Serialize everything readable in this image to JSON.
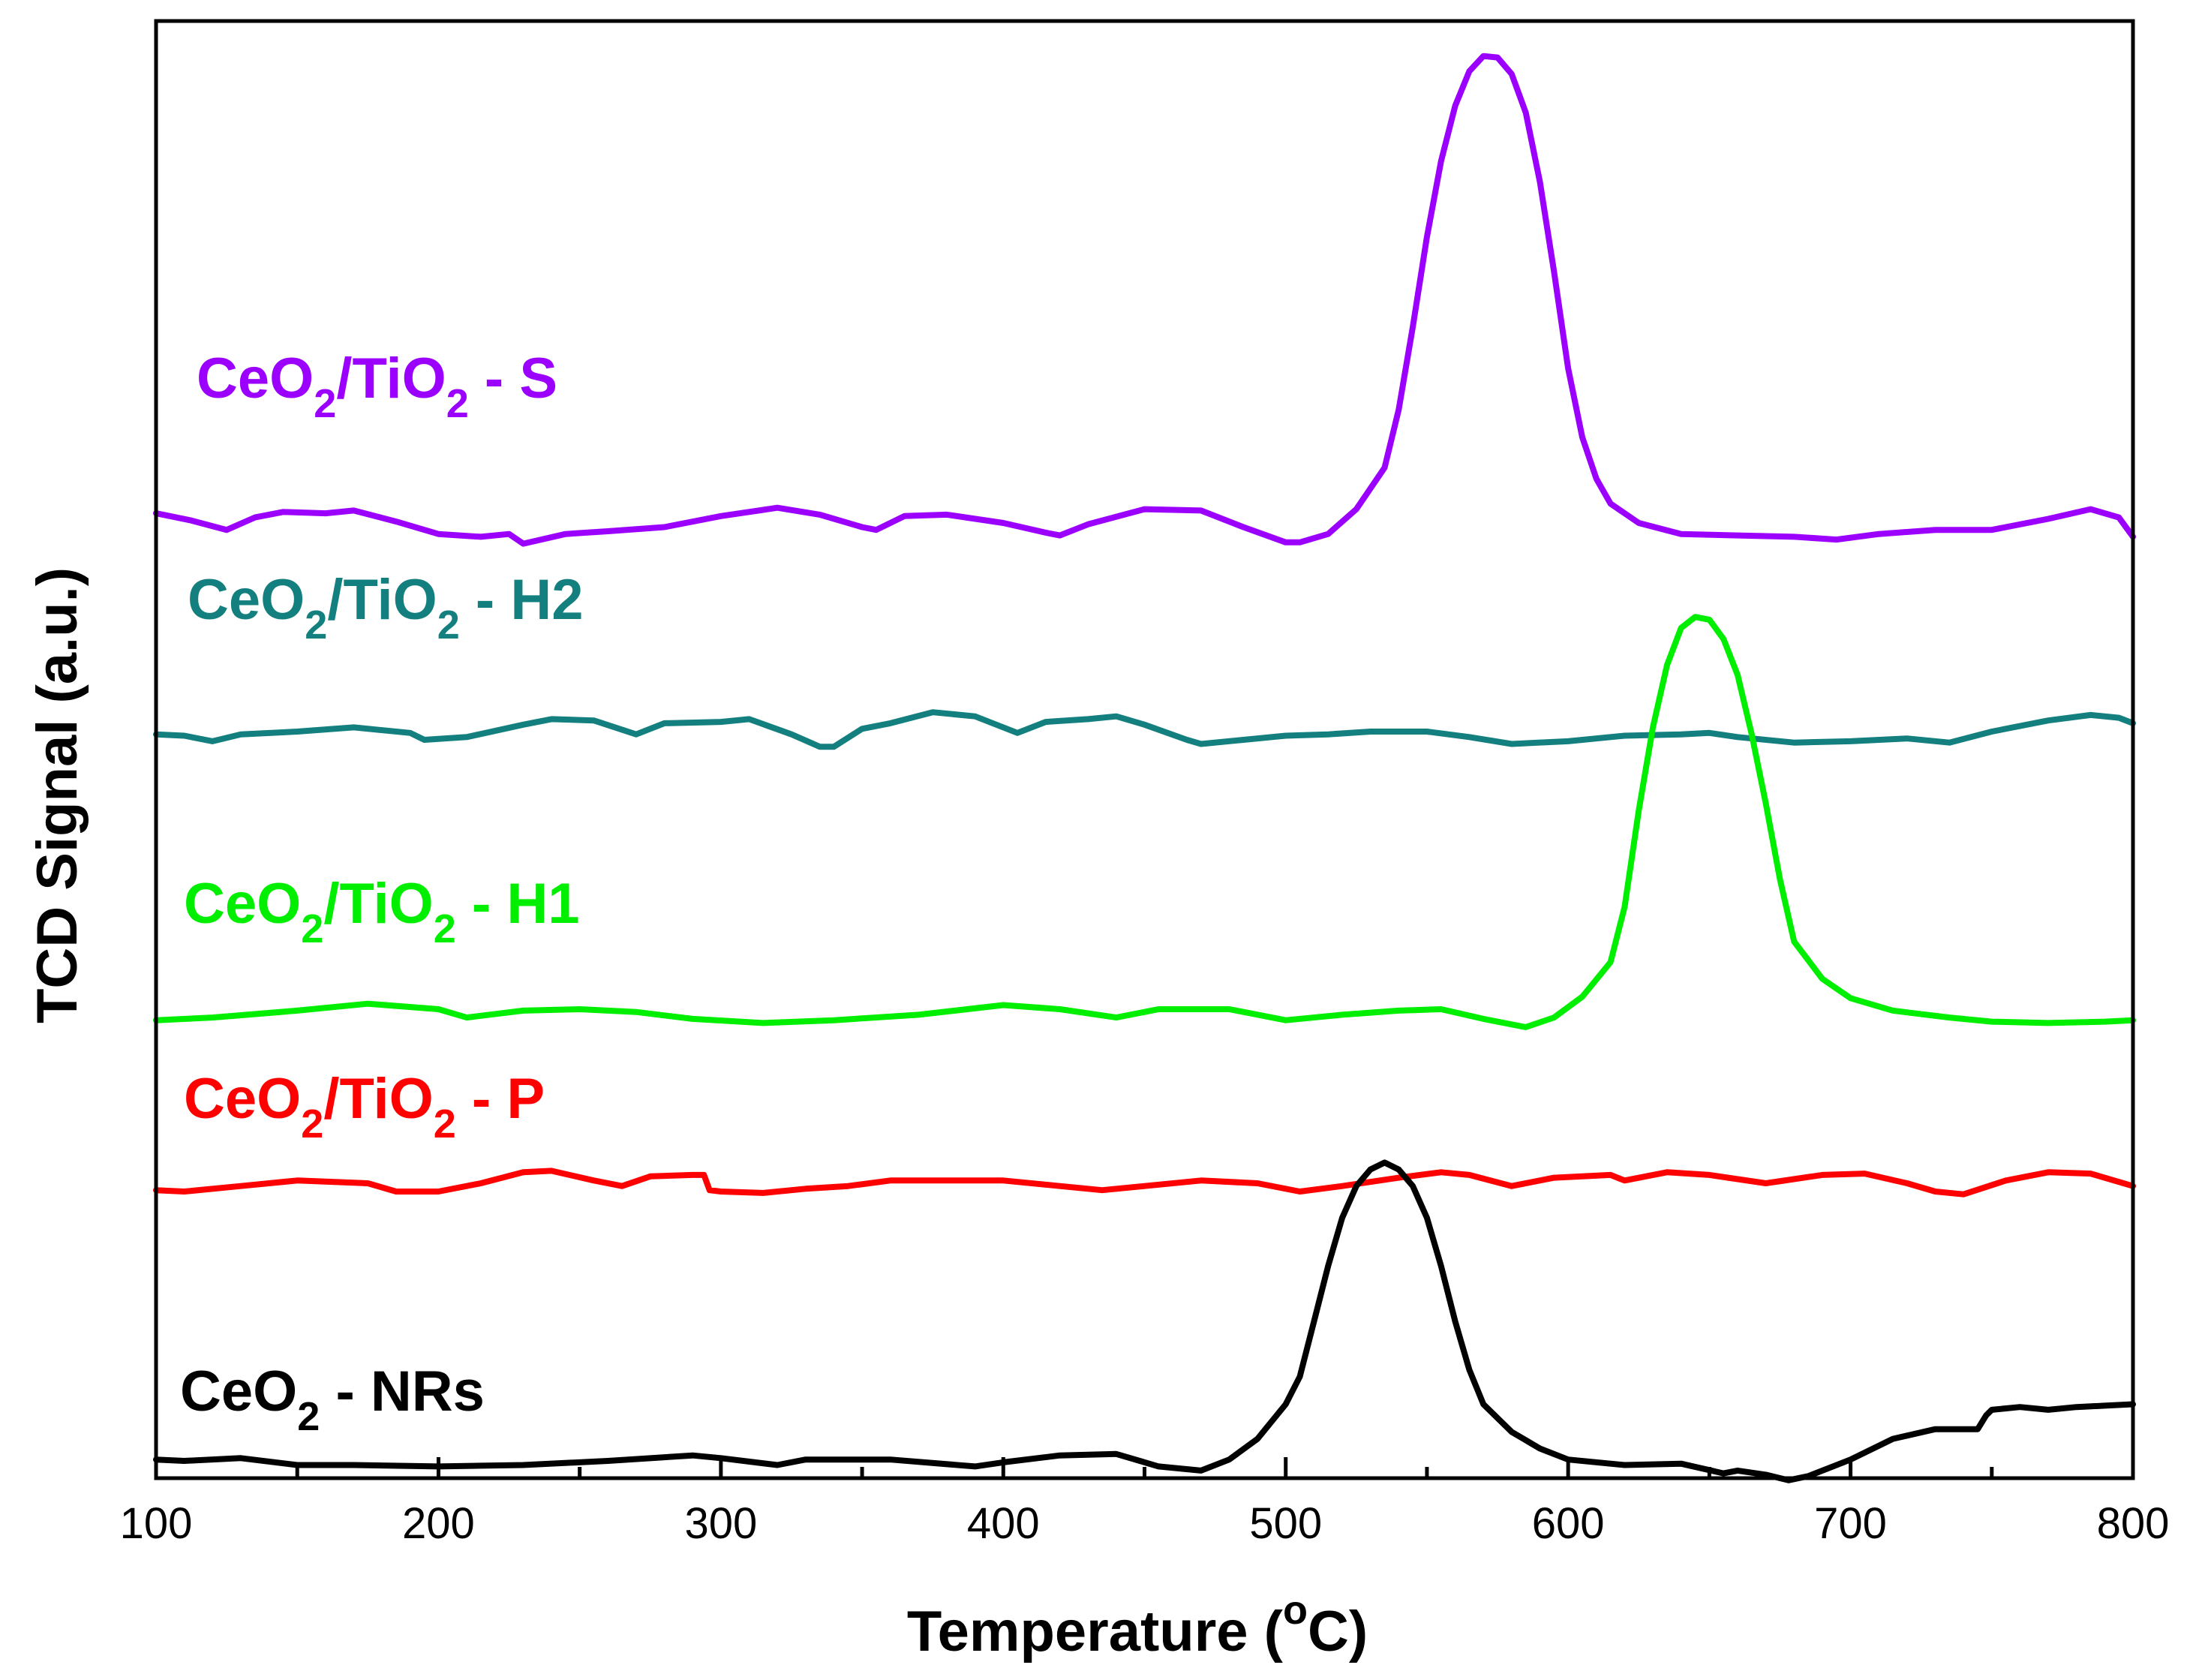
{
  "chart_data": {
    "type": "line",
    "title": "",
    "xlabel_main": "Temperature (",
    "xlabel_unit_sup": "o",
    "xlabel_unit": "C)",
    "ylabel": "TCD Signal (a.u.)",
    "xlim": [
      100,
      800
    ],
    "ylim": [
      0,
      1
    ],
    "x_ticks": [
      100,
      200,
      300,
      400,
      500,
      600,
      700,
      800
    ],
    "x_tick_labels": [
      "100",
      "200",
      "300",
      "400",
      "500",
      "600",
      "700",
      "800"
    ],
    "y_ticks_shown": false,
    "legend": "inline-labels",
    "series": [
      {
        "name": "CeO2/TiO2 - S",
        "label_parts": [
          "CeO",
          "2",
          "/TiO",
          "2",
          " - S"
        ],
        "color": "#9b00ff",
        "points": [
          [
            100,
            0.705
          ],
          [
            112,
            0.7
          ],
          [
            125,
            0.693
          ],
          [
            135,
            0.702
          ],
          [
            145,
            0.706
          ],
          [
            160,
            0.705
          ],
          [
            170,
            0.707
          ],
          [
            185,
            0.699
          ],
          [
            200,
            0.69
          ],
          [
            215,
            0.688
          ],
          [
            225,
            0.69
          ],
          [
            230,
            0.683
          ],
          [
            245,
            0.69
          ],
          [
            260,
            0.692
          ],
          [
            280,
            0.695
          ],
          [
            300,
            0.703
          ],
          [
            320,
            0.709
          ],
          [
            335,
            0.704
          ],
          [
            350,
            0.695
          ],
          [
            355,
            0.693
          ],
          [
            365,
            0.703
          ],
          [
            380,
            0.704
          ],
          [
            400,
            0.698
          ],
          [
            415,
            0.691
          ],
          [
            420,
            0.689
          ],
          [
            430,
            0.697
          ],
          [
            450,
            0.708
          ],
          [
            470,
            0.707
          ],
          [
            485,
            0.695
          ],
          [
            500,
            0.684
          ],
          [
            505,
            0.684
          ],
          [
            515,
            0.69
          ],
          [
            525,
            0.708
          ],
          [
            535,
            0.738
          ],
          [
            540,
            0.78
          ],
          [
            545,
            0.84
          ],
          [
            550,
            0.905
          ],
          [
            555,
            0.96
          ],
          [
            560,
            1.0
          ],
          [
            565,
            1.025
          ],
          [
            570,
            1.036
          ],
          [
            575,
            1.035
          ],
          [
            580,
            1.023
          ],
          [
            585,
            0.995
          ],
          [
            590,
            0.945
          ],
          [
            595,
            0.88
          ],
          [
            600,
            0.81
          ],
          [
            605,
            0.76
          ],
          [
            610,
            0.73
          ],
          [
            615,
            0.712
          ],
          [
            625,
            0.698
          ],
          [
            640,
            0.69
          ],
          [
            660,
            0.689
          ],
          [
            680,
            0.688
          ],
          [
            695,
            0.686
          ],
          [
            710,
            0.69
          ],
          [
            730,
            0.693
          ],
          [
            750,
            0.693
          ],
          [
            770,
            0.701
          ],
          [
            785,
            0.708
          ],
          [
            795,
            0.702
          ],
          [
            800,
            0.688
          ]
        ]
      },
      {
        "name": "CeO2/TiO2 - H2",
        "label_parts": [
          "CeO",
          "2",
          "/TiO",
          "2",
          " - H2"
        ],
        "color": "#147f7f",
        "points": [
          [
            100,
            0.545
          ],
          [
            110,
            0.544
          ],
          [
            120,
            0.54
          ],
          [
            130,
            0.545
          ],
          [
            150,
            0.547
          ],
          [
            170,
            0.55
          ],
          [
            190,
            0.546
          ],
          [
            195,
            0.541
          ],
          [
            210,
            0.543
          ],
          [
            230,
            0.552
          ],
          [
            240,
            0.556
          ],
          [
            255,
            0.555
          ],
          [
            270,
            0.545
          ],
          [
            280,
            0.553
          ],
          [
            300,
            0.554
          ],
          [
            310,
            0.556
          ],
          [
            325,
            0.545
          ],
          [
            335,
            0.536
          ],
          [
            340,
            0.536
          ],
          [
            350,
            0.549
          ],
          [
            360,
            0.553
          ],
          [
            375,
            0.561
          ],
          [
            390,
            0.558
          ],
          [
            405,
            0.546
          ],
          [
            415,
            0.554
          ],
          [
            430,
            0.556
          ],
          [
            440,
            0.558
          ],
          [
            450,
            0.552
          ],
          [
            465,
            0.541
          ],
          [
            470,
            0.538
          ],
          [
            485,
            0.541
          ],
          [
            500,
            0.544
          ],
          [
            515,
            0.545
          ],
          [
            530,
            0.547
          ],
          [
            550,
            0.547
          ],
          [
            565,
            0.543
          ],
          [
            580,
            0.538
          ],
          [
            600,
            0.54
          ],
          [
            620,
            0.544
          ],
          [
            640,
            0.545
          ],
          [
            650,
            0.546
          ],
          [
            660,
            0.543
          ],
          [
            680,
            0.539
          ],
          [
            700,
            0.54
          ],
          [
            720,
            0.542
          ],
          [
            735,
            0.539
          ],
          [
            750,
            0.547
          ],
          [
            770,
            0.555
          ],
          [
            785,
            0.559
          ],
          [
            795,
            0.557
          ],
          [
            800,
            0.553
          ]
        ]
      },
      {
        "name": "CeO2/TiO2 - H1",
        "label_parts": [
          "CeO",
          "2",
          "/TiO",
          "2",
          " - H1"
        ],
        "color": "#00ee00",
        "points": [
          [
            100,
            0.338
          ],
          [
            120,
            0.34
          ],
          [
            150,
            0.345
          ],
          [
            175,
            0.35
          ],
          [
            200,
            0.346
          ],
          [
            210,
            0.34
          ],
          [
            230,
            0.345
          ],
          [
            250,
            0.346
          ],
          [
            270,
            0.344
          ],
          [
            290,
            0.339
          ],
          [
            315,
            0.336
          ],
          [
            340,
            0.338
          ],
          [
            370,
            0.342
          ],
          [
            400,
            0.349
          ],
          [
            420,
            0.346
          ],
          [
            440,
            0.34
          ],
          [
            455,
            0.346
          ],
          [
            480,
            0.346
          ],
          [
            500,
            0.338
          ],
          [
            520,
            0.342
          ],
          [
            540,
            0.345
          ],
          [
            555,
            0.346
          ],
          [
            570,
            0.339
          ],
          [
            585,
            0.333
          ],
          [
            595,
            0.34
          ],
          [
            605,
            0.355
          ],
          [
            615,
            0.38
          ],
          [
            620,
            0.42
          ],
          [
            625,
            0.49
          ],
          [
            630,
            0.55
          ],
          [
            635,
            0.595
          ],
          [
            640,
            0.622
          ],
          [
            645,
            0.63
          ],
          [
            650,
            0.628
          ],
          [
            655,
            0.614
          ],
          [
            660,
            0.588
          ],
          [
            665,
            0.545
          ],
          [
            670,
            0.495
          ],
          [
            675,
            0.44
          ],
          [
            680,
            0.395
          ],
          [
            690,
            0.368
          ],
          [
            700,
            0.354
          ],
          [
            715,
            0.345
          ],
          [
            735,
            0.34
          ],
          [
            750,
            0.337
          ],
          [
            770,
            0.336
          ],
          [
            790,
            0.337
          ],
          [
            800,
            0.338
          ]
        ]
      },
      {
        "name": "CeO2/TiO2 - P",
        "label_parts": [
          "CeO",
          "2",
          "/TiO",
          "2",
          " - P"
        ],
        "color": "#ff0000",
        "points": [
          [
            100,
            0.215
          ],
          [
            110,
            0.214
          ],
          [
            130,
            0.218
          ],
          [
            150,
            0.222
          ],
          [
            175,
            0.22
          ],
          [
            185,
            0.214
          ],
          [
            200,
            0.214
          ],
          [
            215,
            0.22
          ],
          [
            230,
            0.228
          ],
          [
            240,
            0.229
          ],
          [
            255,
            0.222
          ],
          [
            265,
            0.218
          ],
          [
            275,
            0.225
          ],
          [
            290,
            0.226
          ],
          [
            294,
            0.226
          ],
          [
            296,
            0.215
          ],
          [
            300,
            0.214
          ],
          [
            315,
            0.213
          ],
          [
            330,
            0.216
          ],
          [
            345,
            0.218
          ],
          [
            360,
            0.222
          ],
          [
            380,
            0.222
          ],
          [
            400,
            0.222
          ],
          [
            420,
            0.218
          ],
          [
            435,
            0.215
          ],
          [
            450,
            0.218
          ],
          [
            470,
            0.222
          ],
          [
            490,
            0.22
          ],
          [
            505,
            0.214
          ],
          [
            520,
            0.218
          ],
          [
            540,
            0.224
          ],
          [
            555,
            0.228
          ],
          [
            565,
            0.226
          ],
          [
            580,
            0.218
          ],
          [
            595,
            0.224
          ],
          [
            615,
            0.226
          ],
          [
            620,
            0.222
          ],
          [
            635,
            0.228
          ],
          [
            650,
            0.226
          ],
          [
            670,
            0.22
          ],
          [
            690,
            0.226
          ],
          [
            705,
            0.227
          ],
          [
            720,
            0.22
          ],
          [
            730,
            0.214
          ],
          [
            740,
            0.212
          ],
          [
            755,
            0.222
          ],
          [
            770,
            0.228
          ],
          [
            785,
            0.227
          ],
          [
            800,
            0.218
          ]
        ]
      },
      {
        "name": "CeO2 - NRs",
        "label_parts": [
          "CeO",
          "2",
          " - NRs"
        ],
        "color": "#000000",
        "points": [
          [
            100,
            0.02
          ],
          [
            110,
            0.019
          ],
          [
            130,
            0.021
          ],
          [
            150,
            0.016
          ],
          [
            170,
            0.016
          ],
          [
            200,
            0.015
          ],
          [
            230,
            0.016
          ],
          [
            260,
            0.019
          ],
          [
            290,
            0.023
          ],
          [
            300,
            0.021
          ],
          [
            320,
            0.016
          ],
          [
            330,
            0.02
          ],
          [
            360,
            0.02
          ],
          [
            390,
            0.015
          ],
          [
            400,
            0.018
          ],
          [
            420,
            0.023
          ],
          [
            440,
            0.024
          ],
          [
            455,
            0.015
          ],
          [
            470,
            0.012
          ],
          [
            480,
            0.02
          ],
          [
            490,
            0.035
          ],
          [
            500,
            0.06
          ],
          [
            505,
            0.08
          ],
          [
            510,
            0.12
          ],
          [
            515,
            0.16
          ],
          [
            520,
            0.195
          ],
          [
            525,
            0.218
          ],
          [
            530,
            0.23
          ],
          [
            535,
            0.235
          ],
          [
            540,
            0.23
          ],
          [
            545,
            0.218
          ],
          [
            550,
            0.195
          ],
          [
            555,
            0.16
          ],
          [
            560,
            0.12
          ],
          [
            565,
            0.085
          ],
          [
            570,
            0.06
          ],
          [
            580,
            0.04
          ],
          [
            590,
            0.028
          ],
          [
            600,
            0.02
          ],
          [
            620,
            0.016
          ],
          [
            640,
            0.017
          ],
          [
            655,
            0.01
          ],
          [
            660,
            0.012
          ],
          [
            670,
            0.009
          ],
          [
            678,
            0.005
          ],
          [
            685,
            0.008
          ],
          [
            700,
            0.02
          ],
          [
            715,
            0.035
          ],
          [
            730,
            0.042
          ],
          [
            745,
            0.042
          ],
          [
            748,
            0.052
          ],
          [
            750,
            0.056
          ],
          [
            760,
            0.058
          ],
          [
            770,
            0.056
          ],
          [
            780,
            0.058
          ],
          [
            790,
            0.059
          ],
          [
            800,
            0.06
          ]
        ]
      }
    ]
  }
}
